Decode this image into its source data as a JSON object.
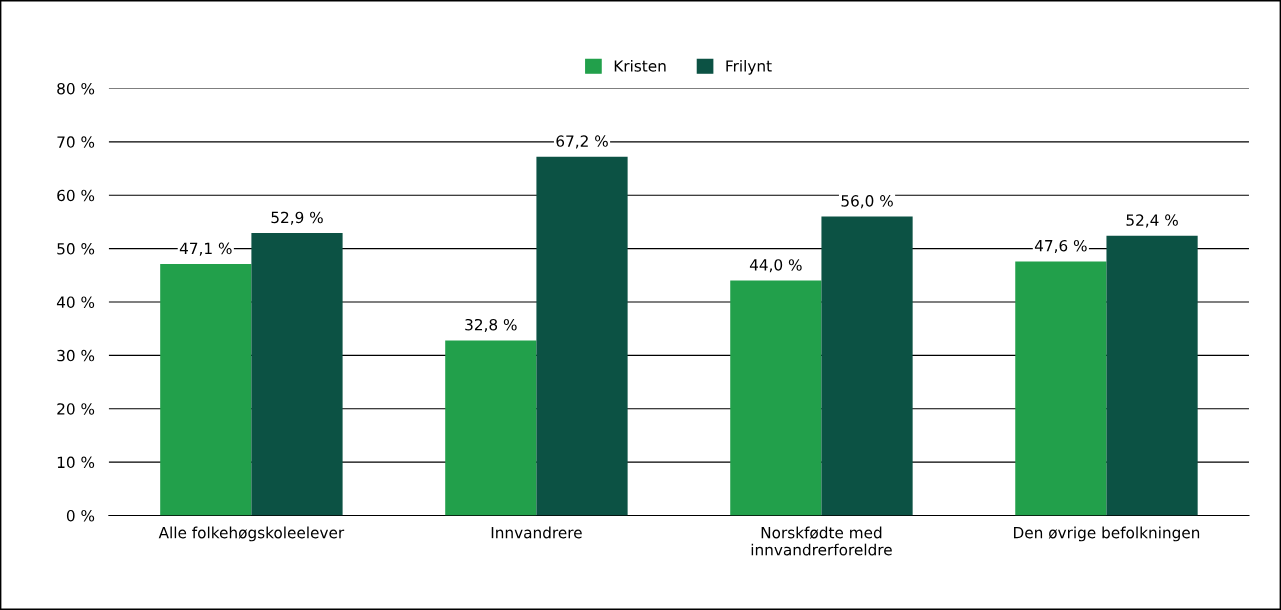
{
  "chart_data": {
    "type": "bar",
    "categories": [
      "Alle folkehøgskoleelever",
      "Innvandrere",
      "Norskfødte med\ninnvandrerforeldre",
      "Den øvrige befolkningen"
    ],
    "series": [
      {
        "name": "Kristen",
        "color": "#22a04b",
        "values": [
          47.1,
          32.8,
          44.0,
          47.6
        ],
        "value_labels": [
          "47,1 %",
          "32,8 %",
          "44,0 %",
          "47,6 %"
        ]
      },
      {
        "name": "Frilynt",
        "color": "#0c5244",
        "values": [
          52.9,
          67.2,
          56.0,
          52.4
        ],
        "value_labels": [
          "52,9 %",
          "67,2 %",
          "56,0 %",
          "52,4 %"
        ]
      }
    ],
    "ylim": [
      0,
      80
    ],
    "yticks": [
      {
        "value": 0,
        "label": "0 %"
      },
      {
        "value": 10,
        "label": "10 %"
      },
      {
        "value": 20,
        "label": "20 %"
      },
      {
        "value": 30,
        "label": "30 %"
      },
      {
        "value": 40,
        "label": "40 %"
      },
      {
        "value": 50,
        "label": "50 %"
      },
      {
        "value": 60,
        "label": "60 %"
      },
      {
        "value": 70,
        "label": "70 %"
      },
      {
        "value": 80,
        "label": "80 %"
      }
    ],
    "grid": "y",
    "legend": "top"
  }
}
